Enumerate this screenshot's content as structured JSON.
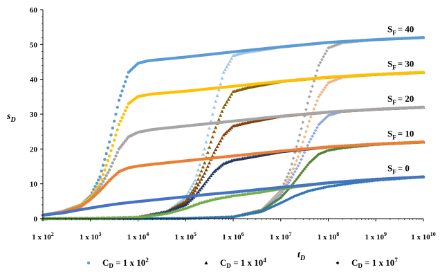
{
  "chart_data": {
    "type": "scatter",
    "xlabel": "t",
    "xlabel_sub": "D",
    "ylabel": "s",
    "ylabel_sub": "D",
    "x_scale": "log",
    "xlim": [
      100,
      10000000000
    ],
    "ylim": [
      0,
      60
    ],
    "y_ticks": [
      0,
      10,
      20,
      30,
      40,
      50,
      60
    ],
    "x_tick_labels": [
      {
        "base": "1 x 10",
        "exp": "2"
      },
      {
        "base": "1 x 10",
        "exp": "3"
      },
      {
        "base": "1 x 10",
        "exp": "4"
      },
      {
        "base": "1 x 10",
        "exp": "5"
      },
      {
        "base": "1 x 10",
        "exp": "6"
      },
      {
        "base": "1 x 10",
        "exp": "7"
      },
      {
        "base": "1 x 10",
        "exp": "8"
      },
      {
        "base": "1 x 10",
        "exp": "9"
      },
      {
        "base": "1 x 10",
        "exp": "10"
      }
    ],
    "skin_labels": [
      {
        "text": "S",
        "sub": "F",
        "value": "= 40",
        "y": 52
      },
      {
        "text": "S",
        "sub": "F",
        "value": "= 30",
        "y": 42
      },
      {
        "text": "S",
        "sub": "F",
        "value": "= 20",
        "y": 32
      },
      {
        "text": "S",
        "sub": "F",
        "value": "= 10",
        "y": 22
      },
      {
        "text": "S",
        "sub": "F",
        "value": "= 0",
        "y": 12
      }
    ],
    "legend": [
      {
        "marker": "circle",
        "label": "C",
        "sub": "D",
        "rest": " = 1 x 10",
        "exp": "2",
        "color": "#5b9bd5"
      },
      {
        "marker": "triangle",
        "label": "C",
        "sub": "D",
        "rest": " = 1 x 10",
        "exp": "4",
        "color": "#000000"
      },
      {
        "marker": "diamond",
        "label": "C",
        "sub": "D",
        "rest": " = 1 x 10",
        "exp": "7",
        "color": "#000000"
      }
    ],
    "skin_colors": {
      "40": "#5b9bd5",
      "30": "#ffc000",
      "20": "#a5a5a5",
      "10": "#ed7d31",
      "0": "#4472c4"
    },
    "series": [
      {
        "cd_exp": 2,
        "skin": 40,
        "marker": "circle",
        "color": "#5b9bd5",
        "points": [
          [
            2,
            1
          ],
          [
            2.4,
            2
          ],
          [
            2.8,
            4
          ],
          [
            3,
            6.5
          ],
          [
            3.2,
            12
          ],
          [
            3.4,
            22
          ],
          [
            3.6,
            34
          ],
          [
            3.8,
            42
          ],
          [
            4,
            44.6
          ],
          [
            4.2,
            45.3
          ],
          [
            4.4,
            45.6
          ],
          [
            5,
            46.4
          ],
          [
            6,
            47.9
          ],
          [
            7,
            49.3
          ],
          [
            8,
            50.6
          ],
          [
            9,
            51.4
          ],
          [
            10,
            52
          ]
        ]
      },
      {
        "cd_exp": 2,
        "skin": 30,
        "marker": "circle",
        "color": "#ffc000",
        "points": [
          [
            2,
            1
          ],
          [
            2.4,
            2
          ],
          [
            2.8,
            4
          ],
          [
            3,
            6
          ],
          [
            3.2,
            10
          ],
          [
            3.4,
            18
          ],
          [
            3.6,
            27
          ],
          [
            3.8,
            33
          ],
          [
            4,
            35.1
          ],
          [
            4.3,
            35.8
          ],
          [
            5,
            36.6
          ],
          [
            6,
            38
          ],
          [
            7,
            39.4
          ],
          [
            8,
            40.6
          ],
          [
            9,
            41.4
          ],
          [
            10,
            42
          ]
        ]
      },
      {
        "cd_exp": 2,
        "skin": 20,
        "marker": "circle",
        "color": "#a5a5a5",
        "points": [
          [
            2,
            1
          ],
          [
            2.4,
            2
          ],
          [
            2.8,
            3.8
          ],
          [
            3,
            5.5
          ],
          [
            3.2,
            9
          ],
          [
            3.4,
            14
          ],
          [
            3.6,
            20
          ],
          [
            3.8,
            23.5
          ],
          [
            4,
            24.8
          ],
          [
            4.3,
            25.6
          ],
          [
            5,
            26.6
          ],
          [
            6,
            28
          ],
          [
            7,
            29.4
          ],
          [
            8,
            30.6
          ],
          [
            9,
            31.4
          ],
          [
            10,
            32
          ]
        ]
      },
      {
        "cd_exp": 2,
        "skin": 10,
        "marker": "circle",
        "color": "#ed7d31",
        "points": [
          [
            2,
            1
          ],
          [
            2.4,
            1.8
          ],
          [
            2.8,
            3.5
          ],
          [
            3,
            5.5
          ],
          [
            3.2,
            8
          ],
          [
            3.4,
            11
          ],
          [
            3.6,
            13.5
          ],
          [
            3.8,
            14.6
          ],
          [
            4,
            15.1
          ],
          [
            4.3,
            15.6
          ],
          [
            5,
            16.6
          ],
          [
            6,
            18
          ],
          [
            7,
            19.4
          ],
          [
            8,
            20.6
          ],
          [
            9,
            21.4
          ],
          [
            10,
            22
          ]
        ]
      },
      {
        "cd_exp": 2,
        "skin": 0,
        "marker": "circle",
        "color": "#4472c4",
        "points": [
          [
            2,
            1
          ],
          [
            2.4,
            1.6
          ],
          [
            2.8,
            2.6
          ],
          [
            3.2,
            3.5
          ],
          [
            3.6,
            4.3
          ],
          [
            4,
            4.9
          ],
          [
            4.5,
            5.6
          ],
          [
            5,
            6.3
          ],
          [
            5.5,
            7
          ],
          [
            6,
            7.6
          ],
          [
            6.5,
            8.3
          ],
          [
            7,
            9
          ],
          [
            7.5,
            9.6
          ],
          [
            8,
            10.3
          ],
          [
            9,
            11.3
          ],
          [
            10,
            12
          ]
        ]
      },
      {
        "cd_exp": 4,
        "skin": 40,
        "marker": "triangle",
        "color": "#9dc3e6",
        "points": [
          [
            2,
            0
          ],
          [
            3,
            0.05
          ],
          [
            4,
            0.4
          ],
          [
            4.6,
            2
          ],
          [
            5,
            6
          ],
          [
            5.2,
            11
          ],
          [
            5.4,
            20
          ],
          [
            5.6,
            32
          ],
          [
            5.8,
            42
          ],
          [
            6,
            46.8
          ],
          [
            6.2,
            47.6
          ],
          [
            7,
            49.3
          ],
          [
            8,
            50.6
          ],
          [
            9,
            51.4
          ],
          [
            10,
            52
          ]
        ]
      },
      {
        "cd_exp": 4,
        "skin": 30,
        "marker": "triangle",
        "color": "#7f6000",
        "points": [
          [
            2,
            0
          ],
          [
            3,
            0.05
          ],
          [
            4,
            0.4
          ],
          [
            4.6,
            2
          ],
          [
            5,
            5
          ],
          [
            5.2,
            9
          ],
          [
            5.4,
            16
          ],
          [
            5.6,
            25
          ],
          [
            5.8,
            32
          ],
          [
            6,
            36.5
          ],
          [
            6.3,
            37.6
          ],
          [
            7,
            39.4
          ],
          [
            8,
            40.6
          ],
          [
            9,
            41.4
          ],
          [
            10,
            42
          ]
        ]
      },
      {
        "cd_exp": 4,
        "skin": 20,
        "marker": "triangle",
        "color": "#843c0c",
        "points": [
          [
            2,
            0
          ],
          [
            3,
            0.05
          ],
          [
            4,
            0.4
          ],
          [
            4.6,
            2
          ],
          [
            5,
            4.5
          ],
          [
            5.2,
            8
          ],
          [
            5.4,
            13
          ],
          [
            5.6,
            19
          ],
          [
            5.8,
            24
          ],
          [
            6,
            26.6
          ],
          [
            6.3,
            27.6
          ],
          [
            7,
            29.4
          ],
          [
            8,
            30.6
          ],
          [
            9,
            31.4
          ],
          [
            10,
            32
          ]
        ]
      },
      {
        "cd_exp": 4,
        "skin": 10,
        "marker": "triangle",
        "color": "#1f3864",
        "points": [
          [
            2,
            0
          ],
          [
            3,
            0.05
          ],
          [
            4,
            0.4
          ],
          [
            4.6,
            2
          ],
          [
            5,
            4
          ],
          [
            5.2,
            6.5
          ],
          [
            5.4,
            10
          ],
          [
            5.6,
            13.5
          ],
          [
            5.8,
            15.8
          ],
          [
            6,
            16.8
          ],
          [
            6.3,
            17.5
          ],
          [
            7,
            19.2
          ],
          [
            8,
            20.6
          ],
          [
            9,
            21.4
          ],
          [
            10,
            22
          ]
        ]
      },
      {
        "cd_exp": 4,
        "skin": 0,
        "marker": "triangle",
        "color": "#70ad47",
        "points": [
          [
            2,
            0
          ],
          [
            3,
            0.05
          ],
          [
            4,
            0.4
          ],
          [
            4.6,
            1.5
          ],
          [
            5,
            3
          ],
          [
            5.3,
            4.5
          ],
          [
            5.6,
            5.6
          ],
          [
            6,
            6.6
          ],
          [
            6.5,
            7.5
          ],
          [
            7,
            8.6
          ],
          [
            7.5,
            9.5
          ],
          [
            8,
            10.3
          ],
          [
            9,
            11.3
          ],
          [
            10,
            12
          ]
        ]
      },
      {
        "cd_exp": 7,
        "skin": 40,
        "marker": "diamond",
        "color": "#a5a5a5",
        "points": [
          [
            2,
            0
          ],
          [
            4,
            0
          ],
          [
            5,
            0.05
          ],
          [
            6,
            0.5
          ],
          [
            6.6,
            2.5
          ],
          [
            7,
            8
          ],
          [
            7.2,
            14
          ],
          [
            7.4,
            24
          ],
          [
            7.6,
            35
          ],
          [
            7.8,
            44
          ],
          [
            8,
            49
          ],
          [
            8.3,
            50.5
          ],
          [
            9,
            51.4
          ],
          [
            10,
            52
          ]
        ]
      },
      {
        "cd_exp": 7,
        "skin": 30,
        "marker": "diamond",
        "color": "#f4b183",
        "points": [
          [
            2,
            0
          ],
          [
            4,
            0
          ],
          [
            5,
            0.05
          ],
          [
            6,
            0.5
          ],
          [
            6.6,
            2.5
          ],
          [
            7,
            7.5
          ],
          [
            7.2,
            12
          ],
          [
            7.4,
            19
          ],
          [
            7.6,
            28
          ],
          [
            7.8,
            35
          ],
          [
            8,
            39
          ],
          [
            8.3,
            40.6
          ],
          [
            9,
            41.4
          ],
          [
            10,
            42
          ]
        ]
      },
      {
        "cd_exp": 7,
        "skin": 20,
        "marker": "diamond",
        "color": "#8faadc",
        "points": [
          [
            2,
            0
          ],
          [
            4,
            0
          ],
          [
            5,
            0.05
          ],
          [
            6,
            0.5
          ],
          [
            6.6,
            2.5
          ],
          [
            7,
            7
          ],
          [
            7.2,
            11
          ],
          [
            7.4,
            16
          ],
          [
            7.6,
            22
          ],
          [
            7.8,
            27
          ],
          [
            8,
            29.6
          ],
          [
            8.3,
            30.8
          ],
          [
            9,
            31.4
          ],
          [
            10,
            32
          ]
        ]
      },
      {
        "cd_exp": 7,
        "skin": 10,
        "marker": "diamond",
        "color": "#548235",
        "points": [
          [
            2,
            0
          ],
          [
            4,
            0
          ],
          [
            5,
            0.05
          ],
          [
            6,
            0.5
          ],
          [
            6.6,
            2.3
          ],
          [
            7,
            6
          ],
          [
            7.2,
            9
          ],
          [
            7.4,
            12.5
          ],
          [
            7.6,
            16
          ],
          [
            7.8,
            18.5
          ],
          [
            8,
            19.6
          ],
          [
            8.3,
            20.3
          ],
          [
            9,
            21.3
          ],
          [
            10,
            22
          ]
        ]
      },
      {
        "cd_exp": 7,
        "skin": 0,
        "marker": "diamond",
        "color": "#2e75b6",
        "points": [
          [
            2,
            0
          ],
          [
            4,
            0
          ],
          [
            5,
            0.05
          ],
          [
            6,
            0.5
          ],
          [
            6.6,
            2
          ],
          [
            7,
            4.5
          ],
          [
            7.3,
            6.5
          ],
          [
            7.6,
            8
          ],
          [
            8,
            9.2
          ],
          [
            8.5,
            10.2
          ],
          [
            9,
            11
          ],
          [
            9.5,
            11.5
          ],
          [
            10,
            12
          ]
        ]
      }
    ]
  }
}
